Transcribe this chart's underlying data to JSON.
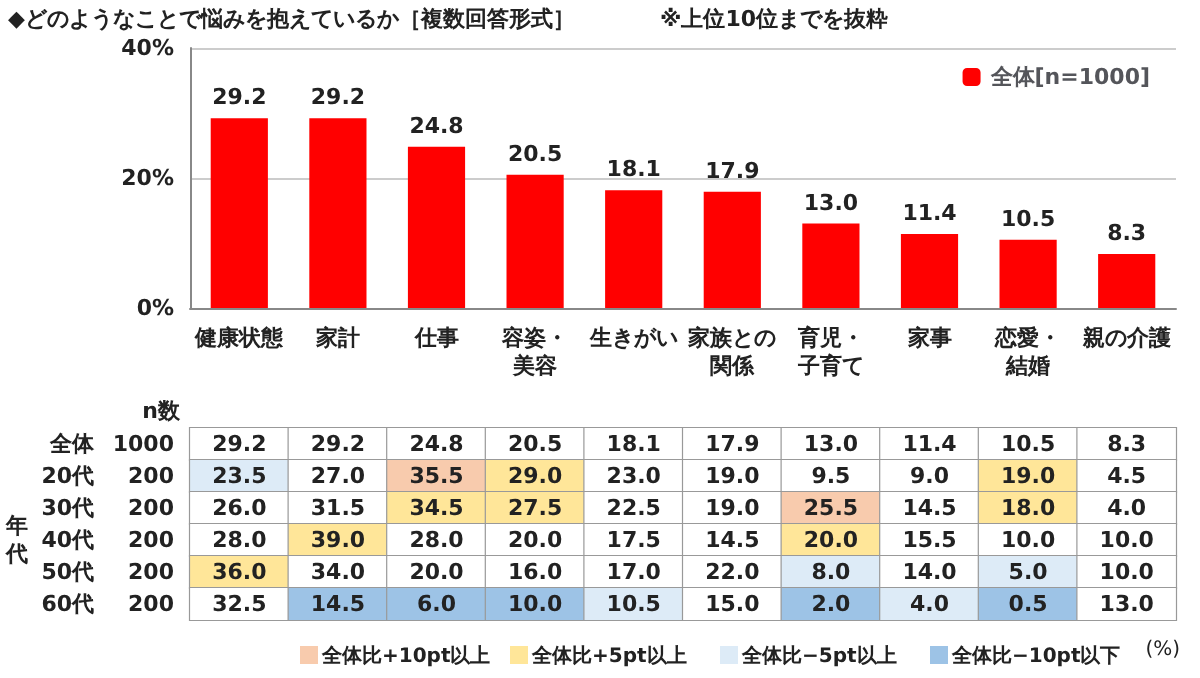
{
  "chart_data": [
    {
      "type": "bar",
      "title": "◆どのようなことで悩みを抱えているか［複数回答形式］",
      "annotations": [
        "※上位10位までを抜粋"
      ],
      "categories": [
        "健康状態",
        "家計",
        "仕事",
        "容姿・美容",
        "生きがい",
        "家族との関係",
        "育児・子育て",
        "家事",
        "恋愛・結婚",
        "親の介護"
      ],
      "series": [
        {
          "name": "全体[n=1000]",
          "color": "#ff0000",
          "values": [
            29.2,
            29.2,
            24.8,
            20.5,
            18.1,
            17.9,
            13.0,
            11.4,
            10.5,
            8.3
          ],
          "value_labels": [
            "29.2",
            "29.2",
            "24.8",
            "20.5",
            "18.1",
            "17.9",
            "13.0",
            "11.4",
            "10.5",
            "8.3"
          ]
        }
      ],
      "ylim": [
        0,
        40
      ],
      "yticks": [
        {
          "value": 0,
          "label": "0%"
        },
        {
          "value": 20,
          "label": "20%"
        },
        {
          "value": 40,
          "label": "40%"
        }
      ],
      "grid": "y",
      "legend": "top right"
    },
    {
      "type": "heatmap",
      "annotations": [
        "n数",
        "年代",
        "(%)"
      ],
      "tick_labels": "y",
      "categories": [
        "健康状態",
        "家計",
        "仕事",
        "容姿・美容",
        "生きがい",
        "家族との関係",
        "育児・子育て",
        "家事",
        "恋愛・結婚",
        "親の介護"
      ],
      "y_categories": [
        "全体",
        "20代",
        "30代",
        "40代",
        "50代",
        "60代"
      ],
      "y2_categories": [
        "1000",
        "200",
        "200",
        "200",
        "200",
        "200"
      ],
      "cells": [
        [
          29.2,
          29.2,
          24.8,
          20.5,
          18.1,
          17.9,
          13.0,
          11.4,
          10.5,
          8.3
        ],
        [
          23.5,
          27.0,
          35.5,
          29.0,
          23.0,
          19.0,
          9.5,
          9.0,
          19.0,
          4.5
        ],
        [
          26.0,
          31.5,
          34.5,
          27.5,
          22.5,
          19.0,
          25.5,
          14.5,
          18.0,
          4.0
        ],
        [
          28.0,
          39.0,
          28.0,
          20.0,
          17.5,
          14.5,
          20.0,
          15.5,
          10.0,
          10.0
        ],
        [
          36.0,
          34.0,
          20.0,
          16.0,
          17.0,
          22.0,
          8.0,
          14.0,
          5.0,
          10.0
        ],
        [
          32.5,
          14.5,
          6.0,
          10.0,
          10.5,
          15.0,
          2.0,
          4.0,
          0.5,
          13.0
        ]
      ],
      "cell_labels": [
        [
          "29.2",
          "29.2",
          "24.8",
          "20.5",
          "18.1",
          "17.9",
          "13.0",
          "11.4",
          "10.5",
          "8.3"
        ],
        [
          "23.5",
          "27.0",
          "35.5",
          "29.0",
          "23.0",
          "19.0",
          "9.5",
          "9.0",
          "19.0",
          "4.5"
        ],
        [
          "26.0",
          "31.5",
          "34.5",
          "27.5",
          "22.5",
          "19.0",
          "25.5",
          "14.5",
          "18.0",
          "4.0"
        ],
        [
          "28.0",
          "39.0",
          "28.0",
          "20.0",
          "17.5",
          "14.5",
          "20.0",
          "15.5",
          "10.0",
          "10.0"
        ],
        [
          "36.0",
          "34.0",
          "20.0",
          "16.0",
          "17.0",
          "22.0",
          "8.0",
          "14.0",
          "5.0",
          "10.0"
        ],
        [
          "32.5",
          "14.5",
          "6.0",
          "10.0",
          "10.5",
          "15.0",
          "2.0",
          "4.0",
          "0.5",
          "13.0"
        ]
      ],
      "colors": [
        [
          "#ffffff",
          "#ffffff",
          "#ffffff",
          "#ffffff",
          "#ffffff",
          "#ffffff",
          "#ffffff",
          "#ffffff",
          "#ffffff",
          "#ffffff"
        ],
        [
          "#ddebf7",
          "#ffffff",
          "#f8cbad",
          "#ffe699",
          "#ffffff",
          "#ffffff",
          "#ffffff",
          "#ffffff",
          "#ffe699",
          "#ffffff"
        ],
        [
          "#ffffff",
          "#ffffff",
          "#ffe699",
          "#ffe699",
          "#ffffff",
          "#ffffff",
          "#f8cbad",
          "#ffffff",
          "#ffe699",
          "#ffffff"
        ],
        [
          "#ffffff",
          "#ffe699",
          "#ffffff",
          "#ffffff",
          "#ffffff",
          "#ffffff",
          "#ffe699",
          "#ffffff",
          "#ffffff",
          "#ffffff"
        ],
        [
          "#ffe699",
          "#ffffff",
          "#ffffff",
          "#ffffff",
          "#ffffff",
          "#ffffff",
          "#ddebf7",
          "#ffffff",
          "#ddebf7",
          "#ffffff"
        ],
        [
          "#ffffff",
          "#9dc3e6",
          "#9dc3e6",
          "#9dc3e6",
          "#ddebf7",
          "#ffffff",
          "#9dc3e6",
          "#ddebf7",
          "#9dc3e6",
          "#ffffff"
        ]
      ]
    },
    {
      "type": "other",
      "categories": [
        "全体比+10pt以上",
        "全体比+5pt以上",
        "全体比−5pt以上",
        "全体比−10pt以下"
      ],
      "colors": [
        "#f8cbad",
        "#ffe699",
        "#ddebf7",
        "#9dc3e6"
      ]
    }
  ]
}
